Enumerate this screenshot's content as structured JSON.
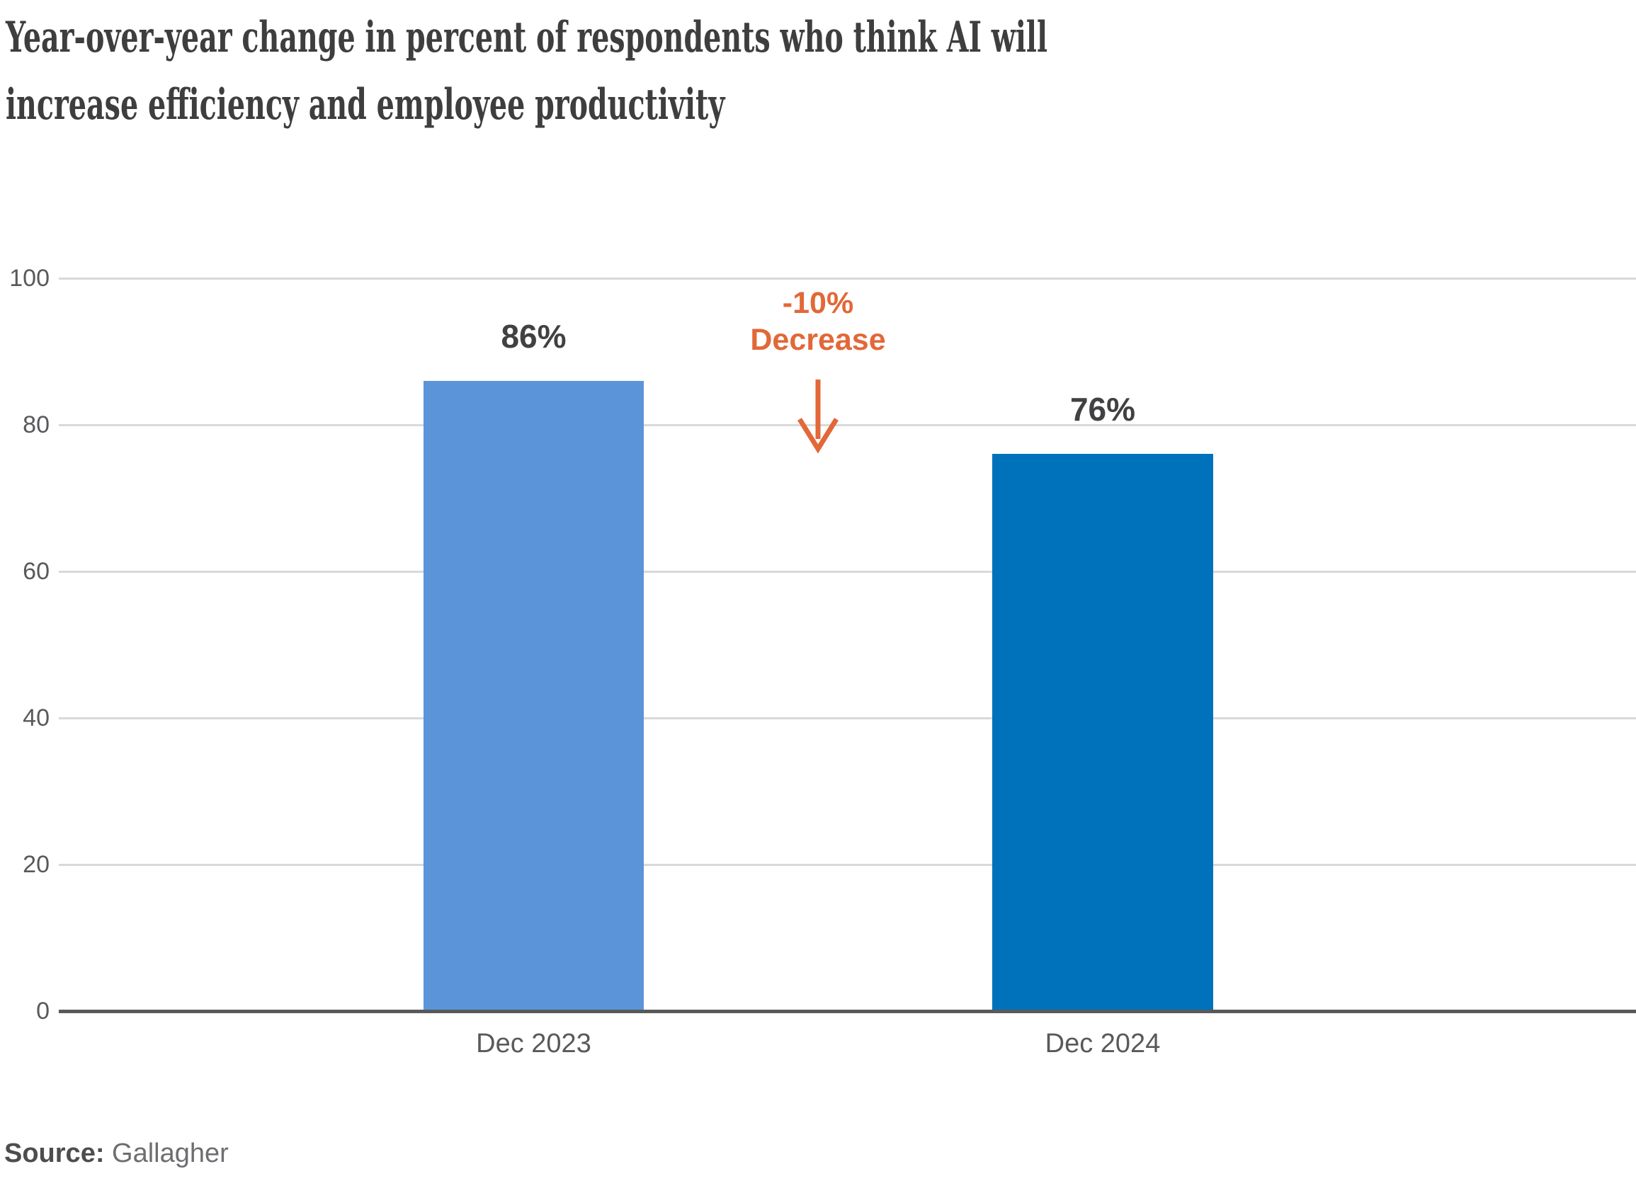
{
  "title": {
    "line1": "Year-over-year change in percent of respondents who think AI will",
    "line2": "increase efficiency and employee productivity"
  },
  "source": {
    "label": "Source:",
    "value": "Gallagher"
  },
  "chart_data": {
    "type": "bar",
    "title": "Year-over-year change in percent of respondents who think AI will increase efficiency and employee productivity",
    "categories": [
      "Dec 2023",
      "Dec 2024"
    ],
    "values": [
      86,
      76
    ],
    "value_labels": [
      "86%",
      "76%"
    ],
    "bar_colors": [
      "#5B94D8",
      "#0072BC"
    ],
    "xlabel": "",
    "ylabel": "",
    "ylim": [
      0,
      100
    ],
    "yticks": [
      0,
      20,
      40,
      60,
      80,
      100
    ],
    "grid": true,
    "gridline_color": "#D9D9D9",
    "axis_color": "#58595B",
    "annotation": {
      "line1": "-10%",
      "line2": "Decrease",
      "color": "#E26838",
      "arrow": "down"
    }
  }
}
